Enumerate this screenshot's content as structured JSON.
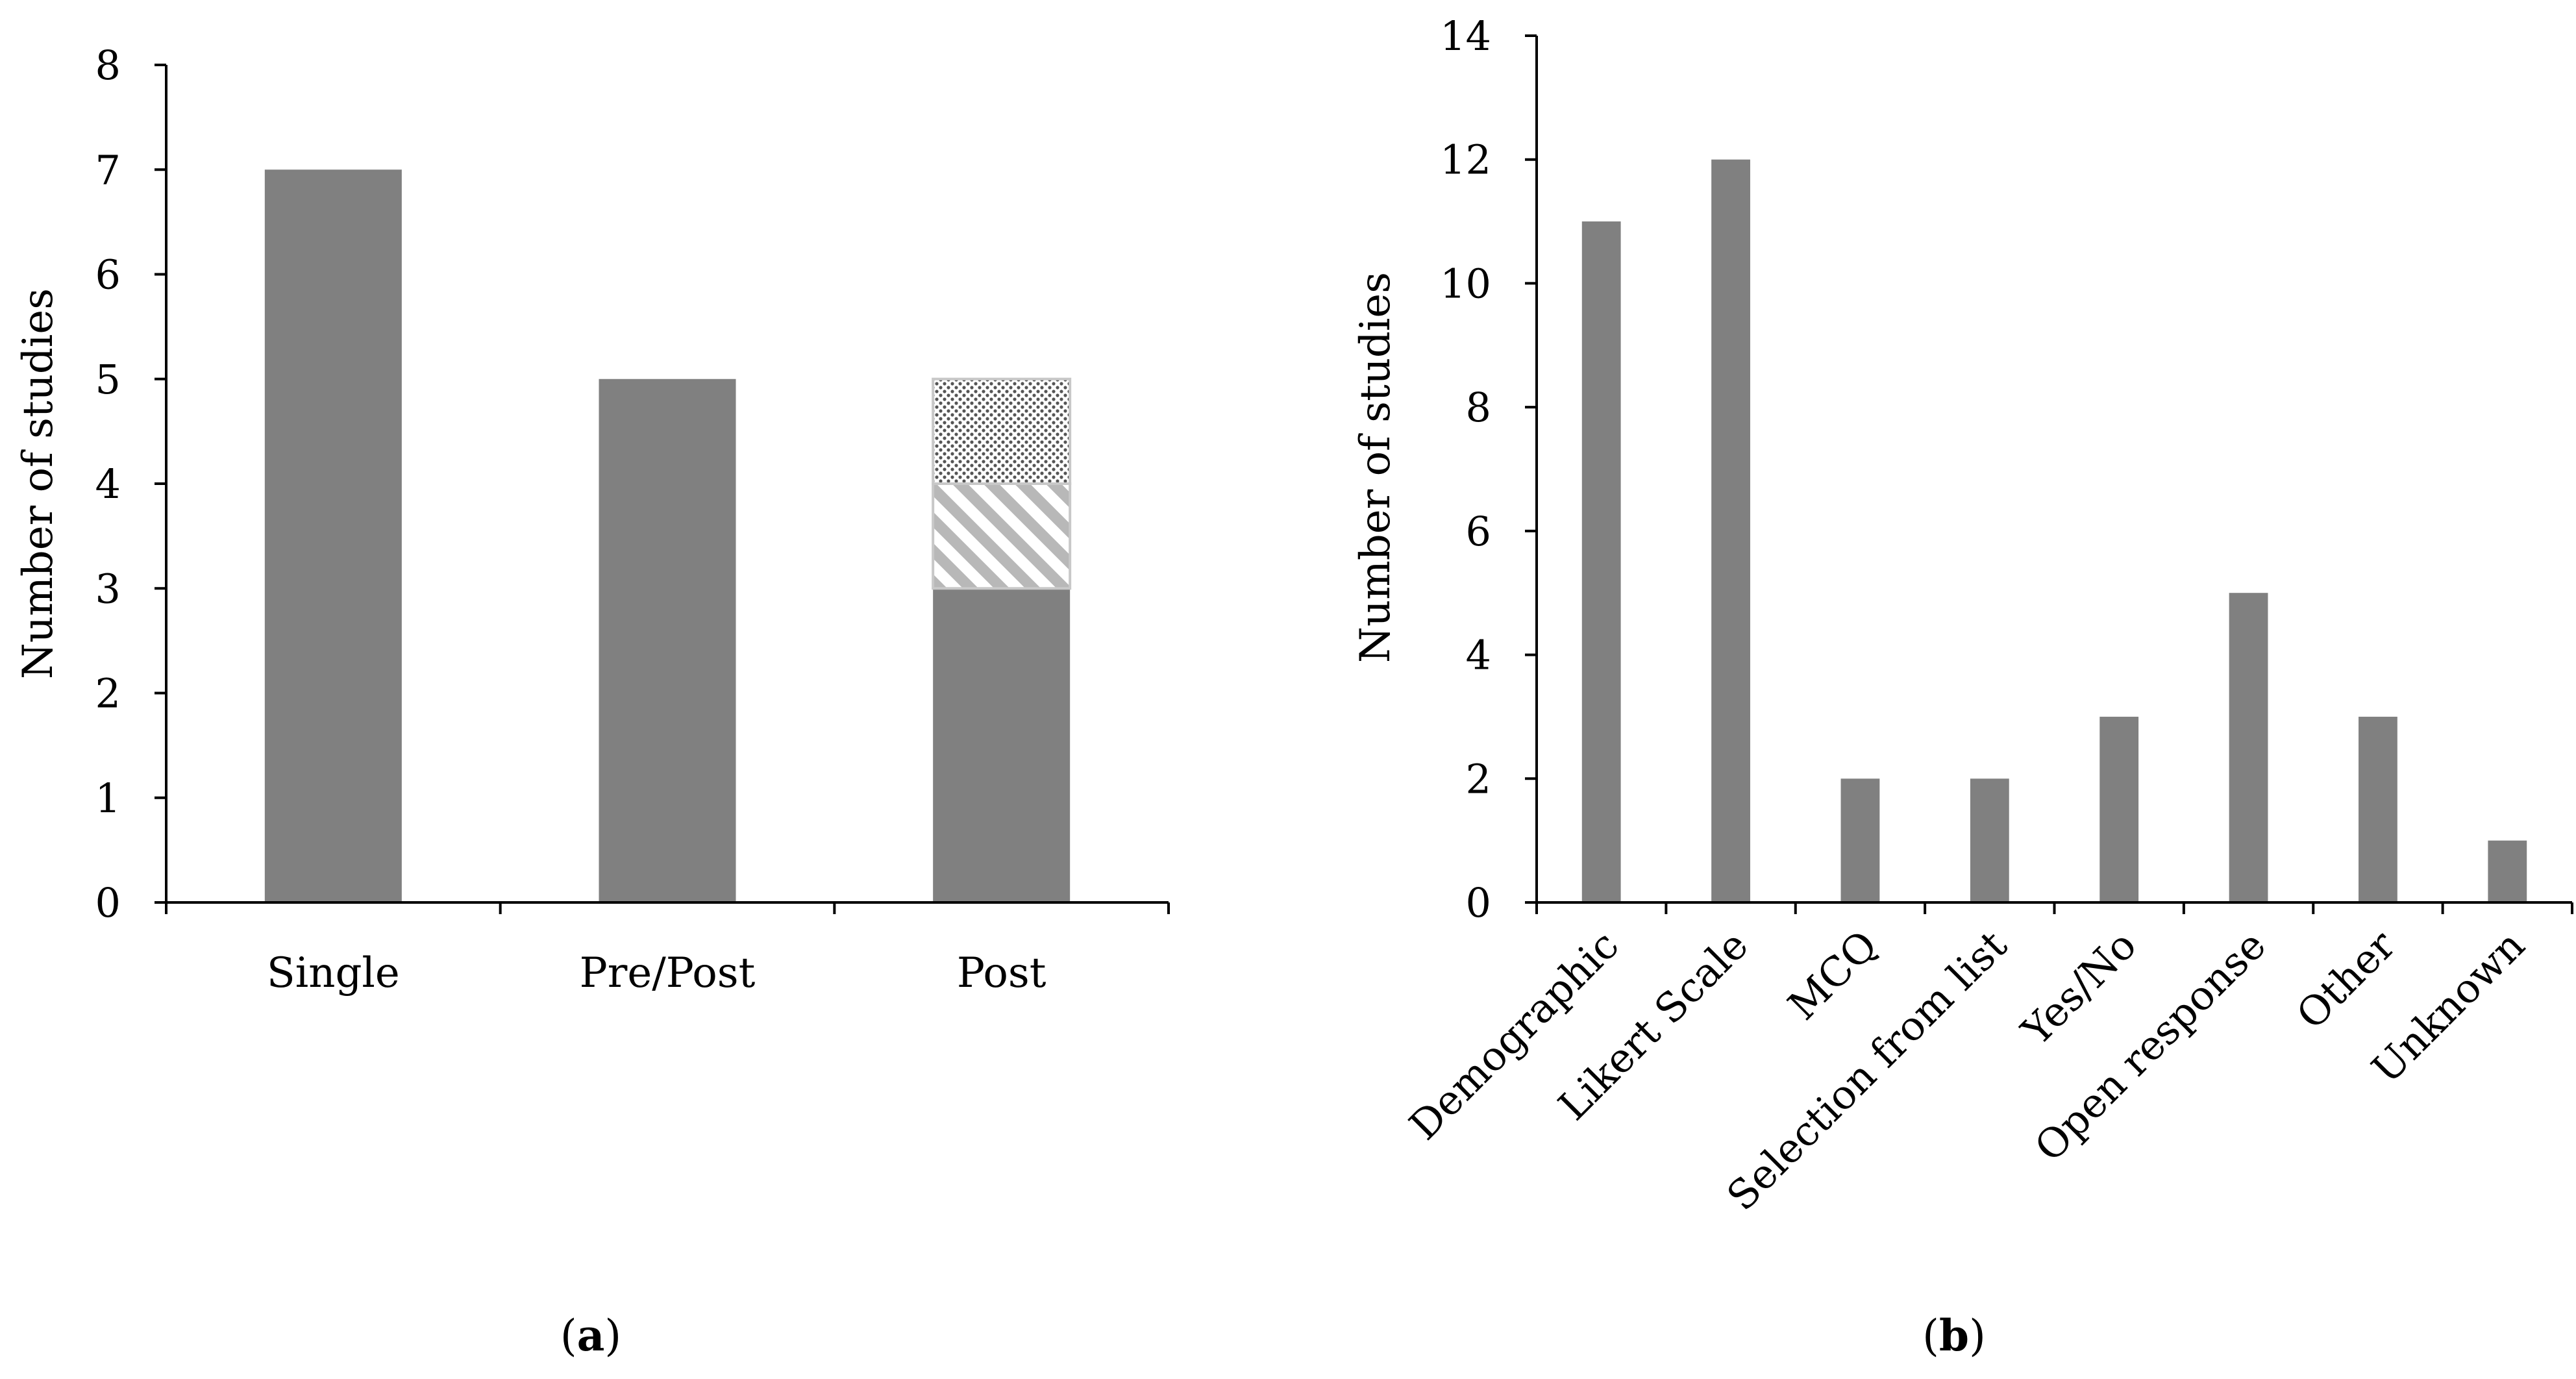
{
  "chart_data": [
    {
      "panel_label": "a",
      "type": "bar",
      "stacked": true,
      "categories": [
        "Single",
        "Pre/Post",
        "Post"
      ],
      "series": [
        {
          "name": "solid",
          "fill": "solid",
          "color": "#808080",
          "values": [
            7,
            5,
            3
          ]
        },
        {
          "name": "hatched",
          "fill": "diagonal-hatch",
          "color": "#b8b8b8",
          "values": [
            0,
            0,
            1
          ]
        },
        {
          "name": "dotted",
          "fill": "dots",
          "color": "#5a5a5a",
          "values": [
            0,
            0,
            1
          ]
        }
      ],
      "ylabel": "Number of studies",
      "xlabel": "",
      "ylim": [
        0,
        8
      ],
      "yticks": [
        "0",
        "1",
        "2",
        "3",
        "4",
        "5",
        "6",
        "7",
        "8"
      ],
      "grid": false,
      "legend": "none"
    },
    {
      "panel_label": "b",
      "type": "bar",
      "categories": [
        "Demographic",
        "Likert Scale",
        "MCQ",
        "Selection from list",
        "Yes/No",
        "Open response",
        "Other",
        "Unknown"
      ],
      "values": [
        11,
        12,
        2,
        2,
        3,
        5,
        3,
        1
      ],
      "color": "#808080",
      "ylabel": "Number of studies",
      "xlabel": "",
      "ylim": [
        0,
        14
      ],
      "yticks": [
        "0",
        "2",
        "4",
        "6",
        "8",
        "10",
        "12",
        "14"
      ],
      "grid": false,
      "legend": "none"
    }
  ]
}
